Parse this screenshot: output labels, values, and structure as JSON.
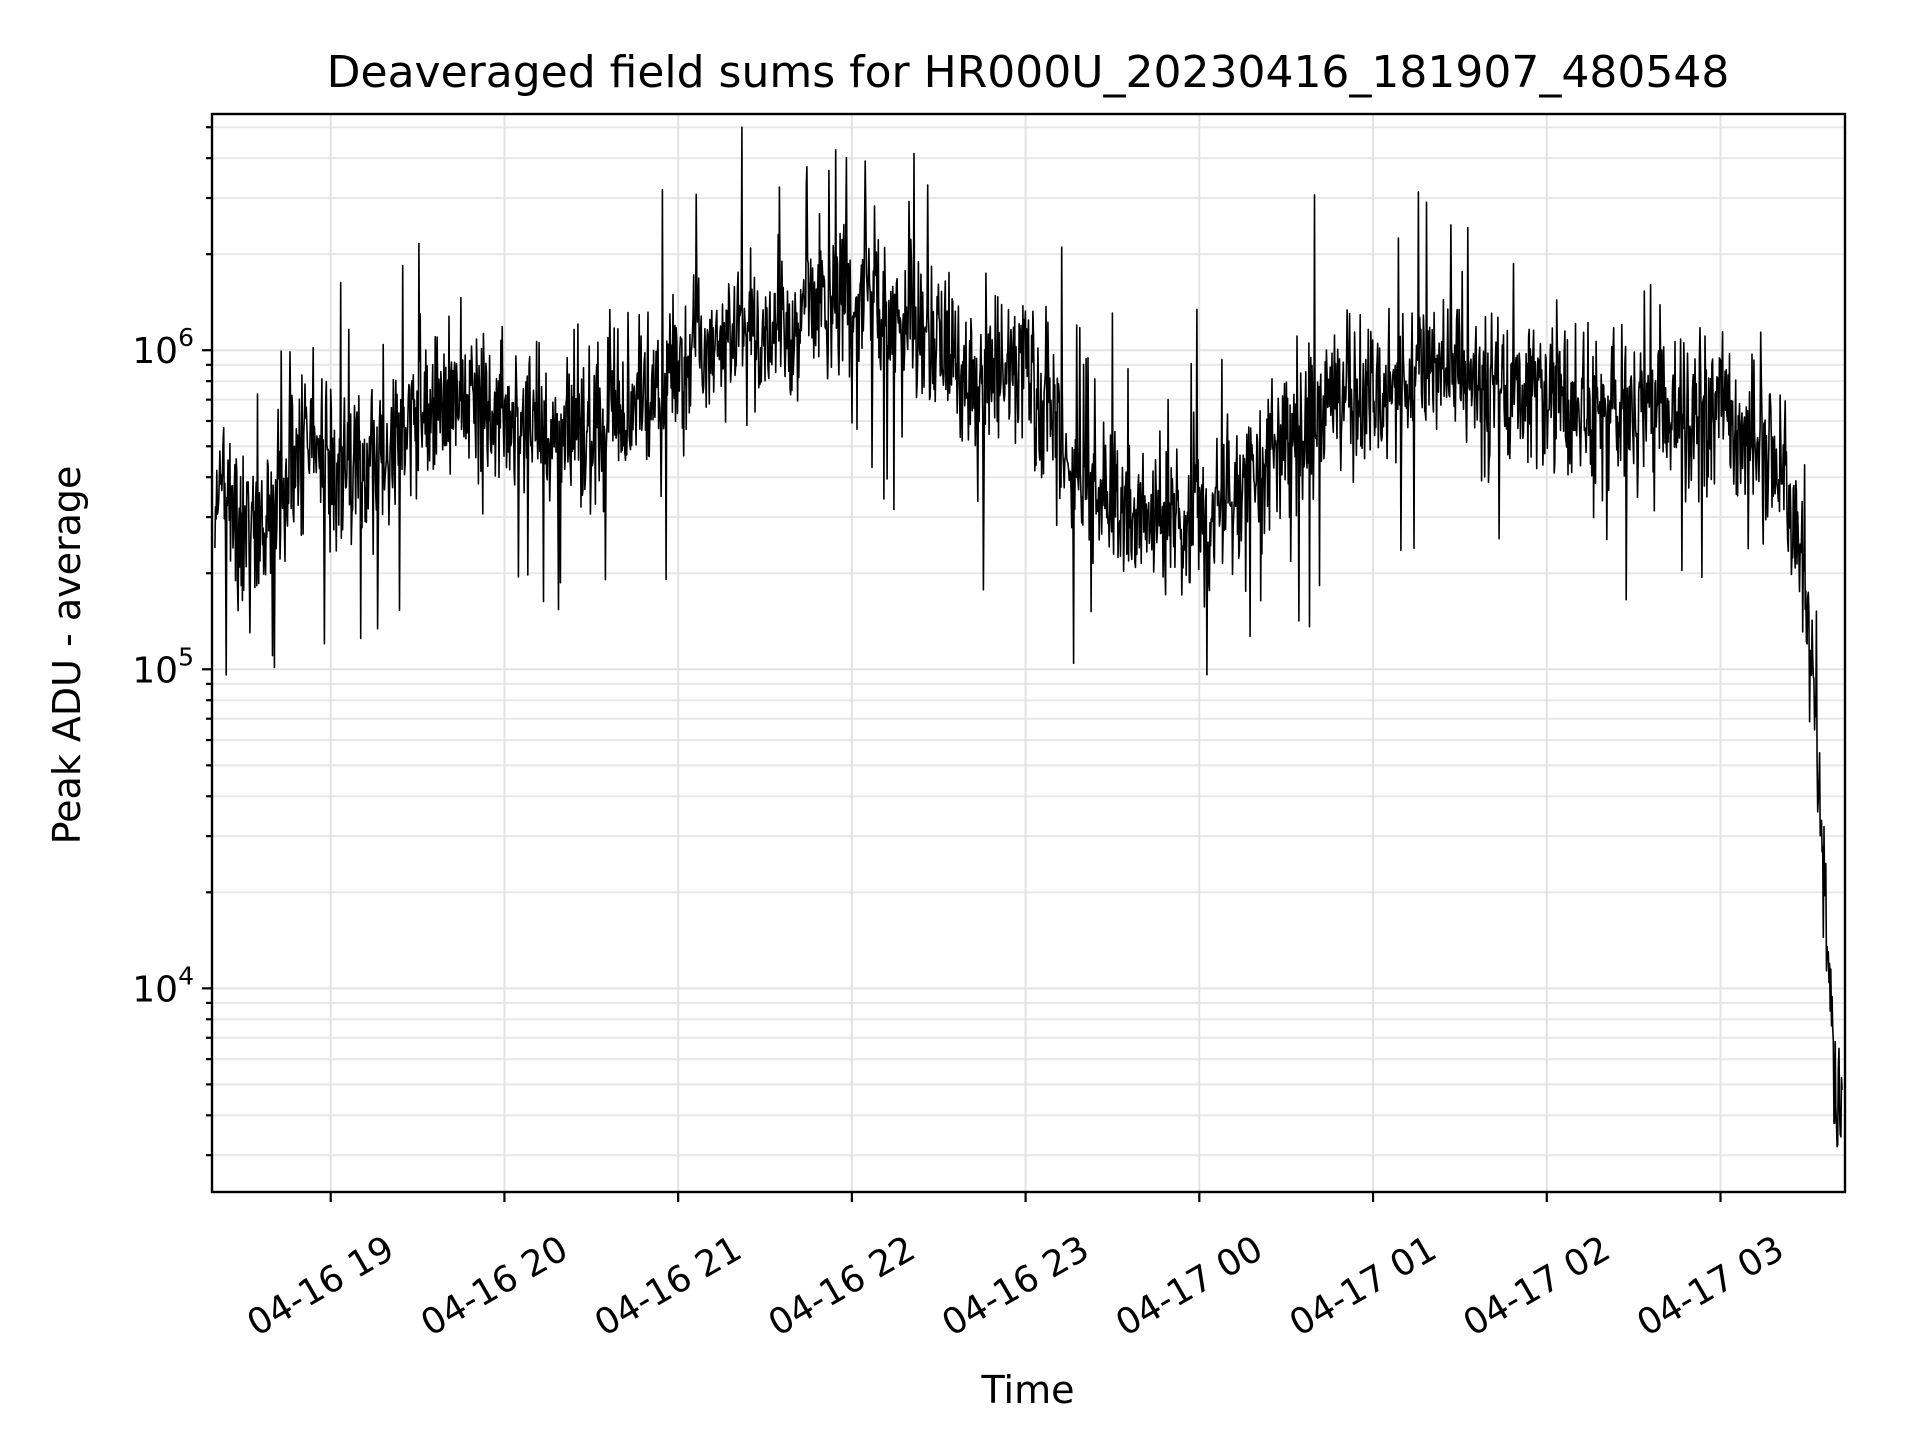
{
  "chart_data": {
    "type": "line",
    "title": "Deaveraged field sums for HR000U_20230416_181907_480548",
    "xlabel": "Time",
    "ylabel": "Peak ADU - average",
    "y_scale": "log",
    "ylim": [
      2300,
      5500000
    ],
    "xlim": [
      "2023-04-16 18:19",
      "2023-04-17 03:43"
    ],
    "grid": "both",
    "legend": "none",
    "line_color": "#000000",
    "x_ticks": [
      {
        "value": "2023-04-16 19:00",
        "label": "04-16 19"
      },
      {
        "value": "2023-04-16 20:00",
        "label": "04-16 20"
      },
      {
        "value": "2023-04-16 21:00",
        "label": "04-16 21"
      },
      {
        "value": "2023-04-16 22:00",
        "label": "04-16 22"
      },
      {
        "value": "2023-04-16 23:00",
        "label": "04-16 23"
      },
      {
        "value": "2023-04-17 00:00",
        "label": "04-17 00"
      },
      {
        "value": "2023-04-17 01:00",
        "label": "04-17 01"
      },
      {
        "value": "2023-04-17 02:00",
        "label": "04-17 02"
      },
      {
        "value": "2023-04-17 03:00",
        "label": "04-17 03"
      }
    ],
    "y_ticks": [
      {
        "value": 10000,
        "base": "10",
        "exp": "4"
      },
      {
        "value": 100000,
        "base": "10",
        "exp": "5"
      },
      {
        "value": 1000000,
        "base": "10",
        "exp": "6"
      }
    ],
    "series": [
      {
        "x": [
          "2023-04-16 18:20",
          "2023-04-16 18:25",
          "2023-04-16 18:30",
          "2023-04-16 18:35",
          "2023-04-16 18:40",
          "2023-04-16 18:45",
          "2023-04-16 18:50",
          "2023-04-16 18:55",
          "2023-04-16 19:00",
          "2023-04-16 19:10",
          "2023-04-16 19:20",
          "2023-04-16 19:30",
          "2023-04-16 19:40",
          "2023-04-16 19:50",
          "2023-04-16 20:00",
          "2023-04-16 20:10",
          "2023-04-16 20:20",
          "2023-04-16 20:30",
          "2023-04-16 20:40",
          "2023-04-16 20:50",
          "2023-04-16 21:00",
          "2023-04-16 21:10",
          "2023-04-16 21:20",
          "2023-04-16 21:30",
          "2023-04-16 21:40",
          "2023-04-16 21:50",
          "2023-04-16 22:00",
          "2023-04-16 22:10",
          "2023-04-16 22:20",
          "2023-04-16 22:30",
          "2023-04-16 22:40",
          "2023-04-16 22:50",
          "2023-04-16 23:00",
          "2023-04-16 23:10",
          "2023-04-16 23:15",
          "2023-04-16 23:20",
          "2023-04-16 23:30",
          "2023-04-16 23:40",
          "2023-04-16 23:50",
          "2023-04-17 00:00",
          "2023-04-17 00:10",
          "2023-04-17 00:20",
          "2023-04-17 00:30",
          "2023-04-17 00:40",
          "2023-04-17 00:50",
          "2023-04-17 01:00",
          "2023-04-17 01:10",
          "2023-04-17 01:20",
          "2023-04-17 01:30",
          "2023-04-17 01:40",
          "2023-04-17 01:50",
          "2023-04-17 02:00",
          "2023-04-17 02:10",
          "2023-04-17 02:20",
          "2023-04-17 02:30",
          "2023-04-17 02:40",
          "2023-04-17 02:50",
          "2023-04-17 03:00",
          "2023-04-17 03:10",
          "2023-04-17 03:20",
          "2023-04-17 03:25",
          "2023-04-17 03:30",
          "2023-04-17 03:33",
          "2023-04-17 03:36",
          "2023-04-17 03:39",
          "2023-04-17 03:42"
        ],
        "values": [
          350000,
          300000,
          280000,
          250000,
          300000,
          360000,
          480000,
          520000,
          460000,
          420000,
          500000,
          600000,
          700000,
          720000,
          640000,
          560000,
          520000,
          540000,
          640000,
          760000,
          900000,
          1050000,
          1150000,
          1050000,
          1200000,
          1500000,
          1550000,
          1350000,
          1250000,
          1050000,
          850000,
          880000,
          950000,
          620000,
          420000,
          360000,
          330000,
          310000,
          300000,
          320000,
          360000,
          420000,
          520000,
          620000,
          680000,
          720000,
          760000,
          820000,
          860000,
          800000,
          760000,
          720000,
          700000,
          680000,
          650000,
          640000,
          660000,
          640000,
          560000,
          420000,
          300000,
          150000,
          60000,
          20000,
          6000,
          3200
        ],
        "spread": 0.45
      }
    ]
  }
}
